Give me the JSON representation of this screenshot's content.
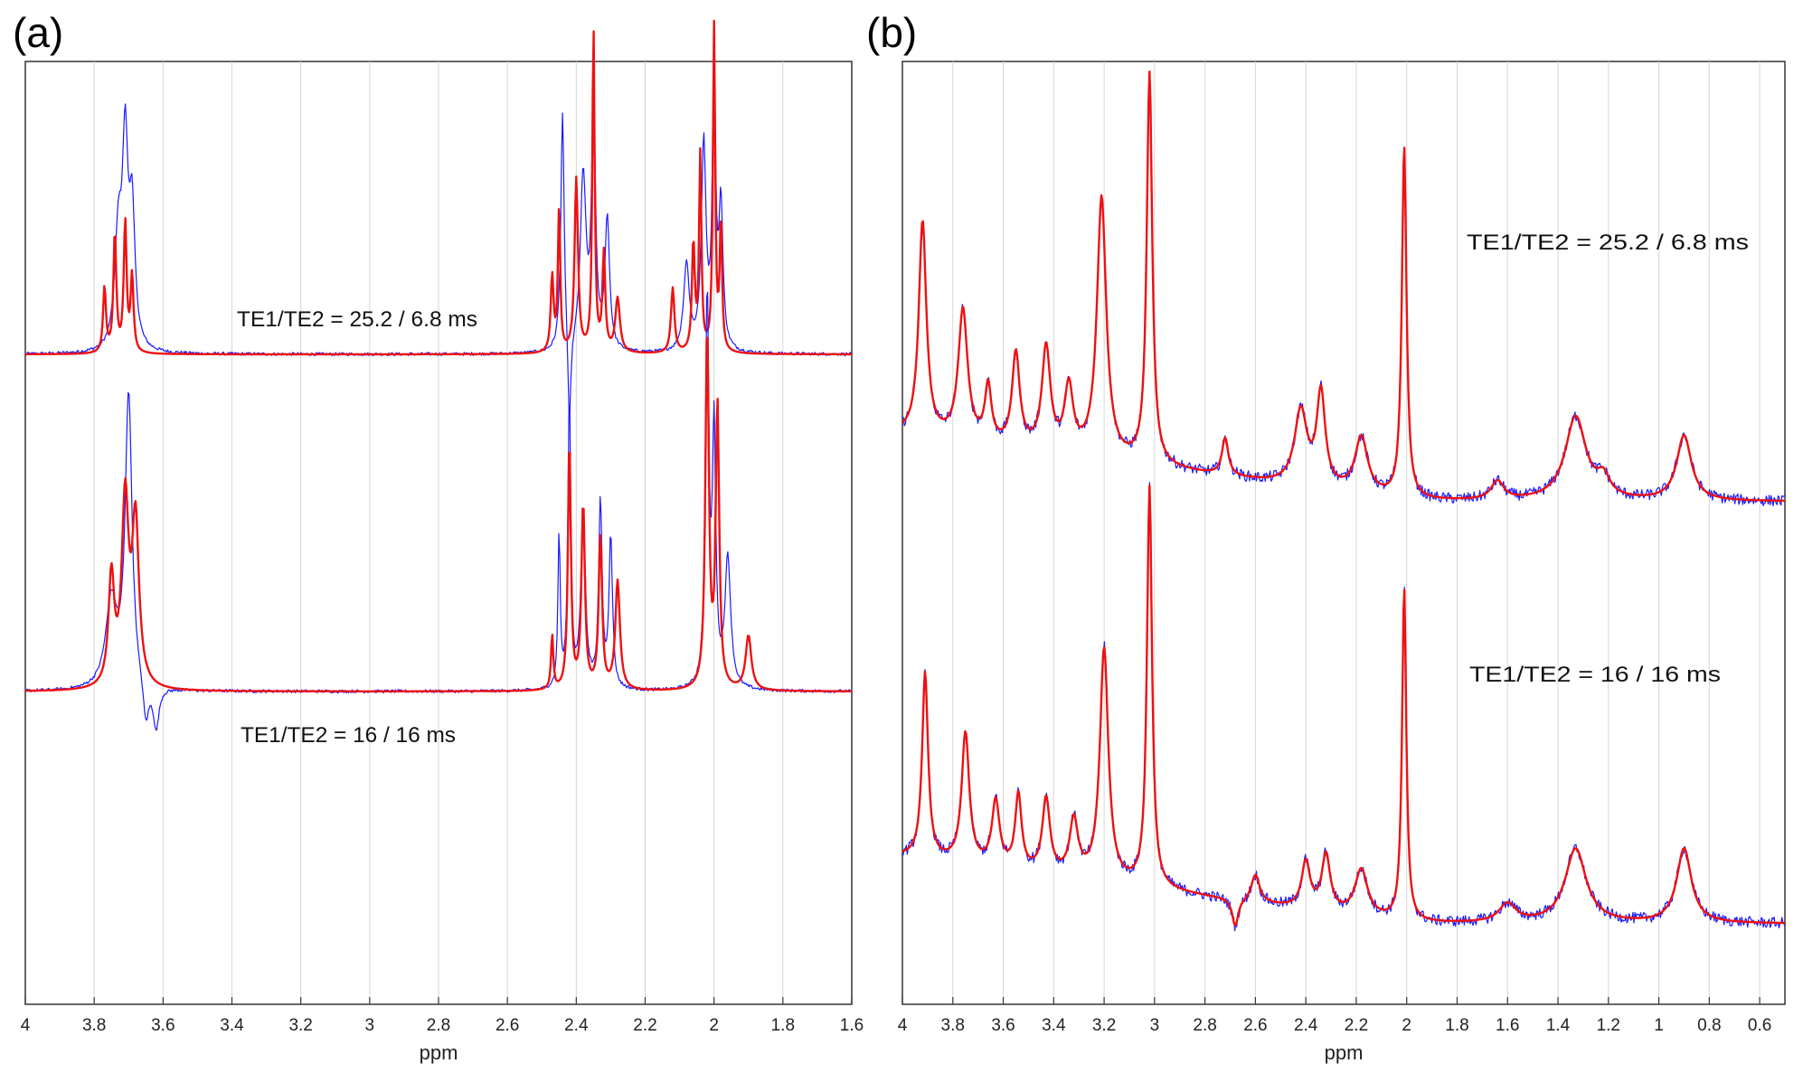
{
  "panels": [
    {
      "letter": "(a)",
      "xlabel": "ppm",
      "xlim": [
        4,
        1.6
      ],
      "xticks": [
        "4",
        "3.8",
        "3.6",
        "3.4",
        "3.2",
        "3",
        "2.8",
        "2.6",
        "2.4",
        "2.2",
        "2",
        "1.8",
        "1.6"
      ],
      "annotations": [
        "TE1/TE2 = 25.2 / 6.8 ms",
        "TE1/TE2 = 16 / 16 ms"
      ]
    },
    {
      "letter": "(b)",
      "xlabel": "ppm",
      "xlim": [
        4,
        0.5
      ],
      "xticks": [
        "4",
        "3.8",
        "3.6",
        "3.4",
        "3.2",
        "3",
        "2.8",
        "2.6",
        "2.4",
        "2.2",
        "2",
        "1.8",
        "1.6",
        "1.4",
        "1.2",
        "1",
        "0.8",
        "0.6"
      ],
      "annotations": [
        "TE1/TE2 = 25.2 / 6.8 ms",
        "TE1/TE2 = 16 / 16 ms"
      ]
    }
  ],
  "chart_data": [
    {
      "type": "line",
      "xlabel": "ppm",
      "xlim": [
        4,
        1.6
      ],
      "grid": true,
      "colors": {
        "measured": "#1a1aff",
        "fit": "#ee1111"
      },
      "spectra": [
        {
          "label": "TE1/TE2 = 25.2 / 6.8 ms",
          "baseline": 0,
          "measured_peaks": [
            [
              3.73,
              0.1,
              0.012
            ],
            [
              3.71,
              0.18,
              0.01
            ],
            [
              3.69,
              0.12,
              0.01
            ],
            [
              2.44,
              0.22,
              0.006
            ],
            [
              2.42,
              -0.09,
              0.005
            ],
            [
              2.38,
              0.16,
              0.01
            ],
            [
              2.35,
              0.22,
              0.007
            ],
            [
              2.31,
              0.12,
              0.008
            ],
            [
              2.08,
              0.08,
              0.01
            ],
            [
              2.03,
              0.19,
              0.008
            ],
            [
              2.0,
              0.24,
              0.006
            ],
            [
              1.98,
              0.13,
              0.007
            ]
          ],
          "fit_peaks": [
            [
              3.77,
              0.06,
              0.005
            ],
            [
              3.74,
              0.11,
              0.005
            ],
            [
              3.71,
              0.12,
              0.005
            ],
            [
              3.69,
              0.07,
              0.005
            ],
            [
              2.47,
              0.07,
              0.005
            ],
            [
              2.45,
              0.13,
              0.004
            ],
            [
              2.4,
              0.16,
              0.006
            ],
            [
              2.35,
              0.3,
              0.004
            ],
            [
              2.32,
              0.09,
              0.005
            ],
            [
              2.28,
              0.05,
              0.008
            ],
            [
              2.12,
              0.06,
              0.006
            ],
            [
              2.06,
              0.1,
              0.005
            ],
            [
              2.04,
              0.18,
              0.004
            ],
            [
              2.0,
              0.3,
              0.004
            ],
            [
              1.98,
              0.12,
              0.004
            ]
          ]
        },
        {
          "label": "TE1/TE2 = 16 / 16 ms",
          "baseline": 0,
          "measured_peaks": [
            [
              3.75,
              0.08,
              0.02
            ],
            [
              3.7,
              0.27,
              0.012
            ],
            [
              3.65,
              -0.04,
              0.01
            ],
            [
              3.62,
              -0.04,
              0.01
            ],
            [
              2.45,
              0.14,
              0.004
            ],
            [
              2.42,
              0.27,
              0.005
            ],
            [
              2.38,
              0.16,
              0.008
            ],
            [
              2.33,
              0.17,
              0.006
            ],
            [
              2.3,
              0.14,
              0.006
            ],
            [
              2.02,
              0.36,
              0.006
            ],
            [
              2.0,
              0.23,
              0.006
            ],
            [
              1.96,
              0.12,
              0.01
            ]
          ],
          "fit_peaks": [
            [
              3.75,
              0.1,
              0.01
            ],
            [
              3.71,
              0.17,
              0.012
            ],
            [
              3.68,
              0.15,
              0.012
            ],
            [
              2.47,
              0.05,
              0.004
            ],
            [
              2.42,
              0.23,
              0.005
            ],
            [
              2.38,
              0.17,
              0.006
            ],
            [
              2.33,
              0.14,
              0.006
            ],
            [
              2.28,
              0.1,
              0.008
            ],
            [
              2.02,
              0.33,
              0.006
            ],
            [
              1.99,
              0.26,
              0.006
            ],
            [
              1.9,
              0.05,
              0.01
            ]
          ]
        }
      ]
    },
    {
      "type": "line",
      "xlabel": "ppm",
      "xlim": [
        4,
        0.5
      ],
      "grid": true,
      "colors": {
        "measured": "#1a1aff",
        "fit": "#ee1111"
      },
      "spectra": [
        {
          "label": "TE1/TE2 = 25.2 / 6.8 ms",
          "baseline": 0,
          "peaks": [
            [
              3.92,
              0.23,
              0.018
            ],
            [
              3.76,
              0.14,
              0.022
            ],
            [
              3.66,
              0.06,
              0.015
            ],
            [
              3.55,
              0.1,
              0.018
            ],
            [
              3.43,
              0.11,
              0.02
            ],
            [
              3.34,
              0.07,
              0.02
            ],
            [
              3.21,
              0.28,
              0.022
            ],
            [
              3.02,
              0.42,
              0.013
            ],
            [
              2.72,
              0.04,
              0.015
            ],
            [
              2.42,
              0.08,
              0.03
            ],
            [
              2.34,
              0.1,
              0.02
            ],
            [
              2.18,
              0.06,
              0.03
            ],
            [
              2.01,
              0.38,
              0.011
            ],
            [
              1.64,
              0.02,
              0.03
            ],
            [
              1.33,
              0.09,
              0.05
            ],
            [
              1.22,
              0.02,
              0.03
            ],
            [
              0.9,
              0.07,
              0.035
            ]
          ]
        },
        {
          "label": "TE1/TE2 = 16 / 16 ms",
          "baseline": 0,
          "peaks": [
            [
              3.91,
              0.2,
              0.014
            ],
            [
              3.75,
              0.14,
              0.018
            ],
            [
              3.63,
              0.07,
              0.018
            ],
            [
              3.54,
              0.08,
              0.015
            ],
            [
              3.43,
              0.08,
              0.018
            ],
            [
              3.32,
              0.06,
              0.02
            ],
            [
              3.2,
              0.25,
              0.02
            ],
            [
              3.02,
              0.43,
              0.012
            ],
            [
              2.68,
              -0.03,
              0.015
            ],
            [
              2.6,
              0.03,
              0.02
            ],
            [
              2.4,
              0.05,
              0.02
            ],
            [
              2.32,
              0.06,
              0.02
            ],
            [
              2.18,
              0.05,
              0.03
            ],
            [
              2.01,
              0.36,
              0.01
            ],
            [
              1.6,
              0.02,
              0.04
            ],
            [
              1.33,
              0.08,
              0.05
            ],
            [
              0.9,
              0.08,
              0.035
            ]
          ]
        }
      ]
    }
  ]
}
